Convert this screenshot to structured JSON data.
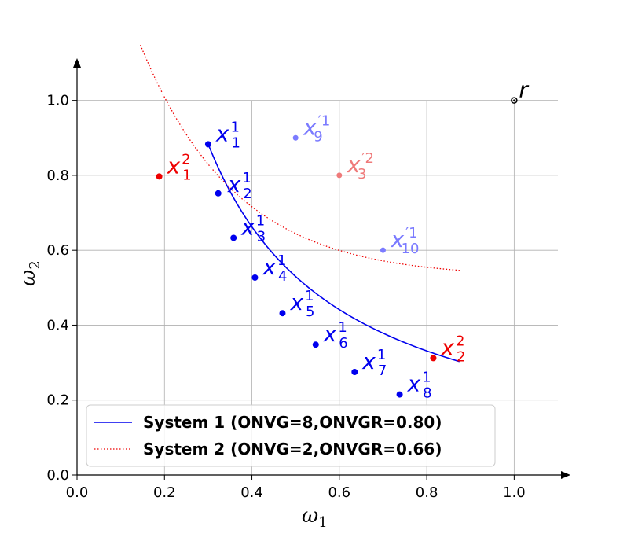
{
  "chart_data": {
    "type": "line",
    "title": "",
    "xlabel": "ω",
    "xlabel_sub": "1",
    "ylabel": "ω",
    "ylabel_sub": "2",
    "xlim": [
      0.0,
      1.1
    ],
    "ylim": [
      0.0,
      1.1
    ],
    "xticks": [
      "0.0",
      "0.2",
      "0.4",
      "0.6",
      "0.8",
      "1.0"
    ],
    "yticks": [
      "0.0",
      "0.2",
      "0.4",
      "0.6",
      "0.8",
      "1.0"
    ],
    "grid": true,
    "legend_position": "lower-left",
    "series": [
      {
        "name": "System 1 (ONVG=8,ONVGR=0.80)",
        "color": "#0000ee",
        "style": "solid",
        "curve_x_range": [
          0.3,
          0.875
        ],
        "curve_k": 0.265,
        "points": [
          {
            "x": 0.3,
            "y": 0.883,
            "label": "x",
            "sup": "1",
            "sub": "1"
          },
          {
            "x": 0.323,
            "y": 0.752,
            "label": "x",
            "sup": "1",
            "sub": "2"
          },
          {
            "x": 0.358,
            "y": 0.633,
            "label": "x",
            "sup": "1",
            "sub": "3"
          },
          {
            "x": 0.407,
            "y": 0.527,
            "label": "x",
            "sup": "1",
            "sub": "4"
          },
          {
            "x": 0.47,
            "y": 0.432,
            "label": "x",
            "sup": "1",
            "sub": "5"
          },
          {
            "x": 0.546,
            "y": 0.348,
            "label": "x",
            "sup": "1",
            "sub": "6"
          },
          {
            "x": 0.635,
            "y": 0.275,
            "label": "x",
            "sup": "1",
            "sub": "7"
          },
          {
            "x": 0.738,
            "y": 0.215,
            "label": "x",
            "sup": "1",
            "sub": "8"
          }
        ]
      },
      {
        "name": "System 2 (ONVG=2,ONVGR=0.66)",
        "color": "#ee0000",
        "style": "dotted",
        "curve_x_range": [
          0.145,
          0.875
        ],
        "curve_a": 0.255,
        "curve_b": 0.13,
        "curve_c": 0.21,
        "points": [
          {
            "x": 0.188,
            "y": 0.797,
            "label": "x",
            "sup": "2",
            "sub": "1"
          },
          {
            "x": 0.815,
            "y": 0.312,
            "label": "x",
            "sup": "2",
            "sub": "2"
          }
        ]
      }
    ],
    "extra_points": [
      {
        "x": 0.5,
        "y": 0.9,
        "label": "x",
        "sup": "′1",
        "sub": "9",
        "color": "#7b7bff"
      },
      {
        "x": 0.6,
        "y": 0.8,
        "label": "x",
        "sup": "′2",
        "sub": "3",
        "color": "#ef7a7a"
      },
      {
        "x": 0.7,
        "y": 0.6,
        "label": "x",
        "sup": "′1",
        "sub": "10",
        "color": "#7b7bff"
      }
    ],
    "reference_point": {
      "x": 1.0,
      "y": 1.0,
      "label": "r",
      "color": "#000000"
    }
  }
}
